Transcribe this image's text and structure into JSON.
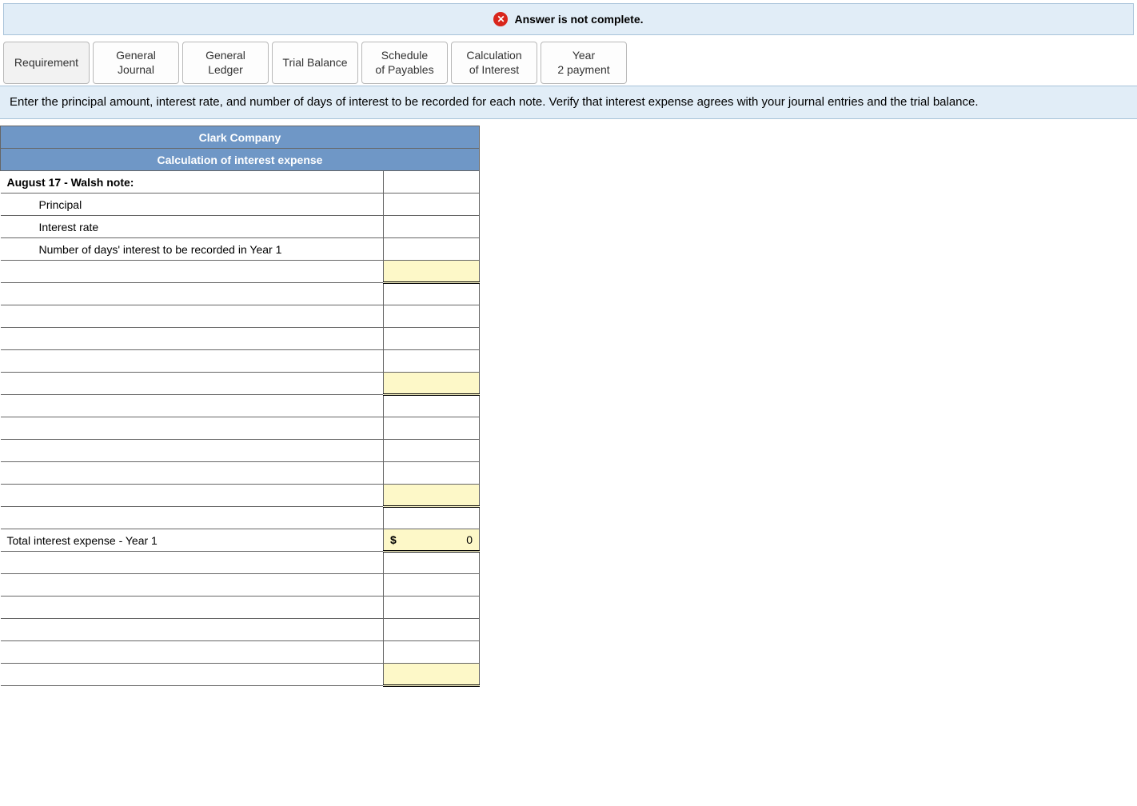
{
  "banner": {
    "text": "Answer is not complete.",
    "icon_name": "error-x-icon",
    "icon_glyph": "✕",
    "bg_color": "#e1edf7",
    "border_color": "#a8c3d9",
    "icon_bg": "#d9261c"
  },
  "tabs": [
    {
      "label": "Requirement",
      "active": true
    },
    {
      "label": "General Journal",
      "active": false
    },
    {
      "label": "General Ledger",
      "active": false
    },
    {
      "label": "Trial Balance",
      "active": false
    },
    {
      "label": "Schedule of Payables",
      "active": false
    },
    {
      "label": "Calculation of Interest",
      "active": false
    },
    {
      "label": "Year 2 payment",
      "active": false
    }
  ],
  "instructions": "Enter the principal amount, interest rate, and number of days of interest to be recorded for each note.  Verify that interest expense agrees with your journal entries and the trial balance.",
  "sheet": {
    "company": "Clark Company",
    "subtitle": "Calculation of interest expense",
    "header_bg": "#6f97c6",
    "header_fg": "#ffffff",
    "highlight_bg": "#fdf8c8",
    "rows": [
      {
        "label": "August 17 - Walsh note:",
        "value": "",
        "type": "section"
      },
      {
        "label": "Principal",
        "value": "",
        "type": "indent"
      },
      {
        "label": "Interest rate",
        "value": "",
        "type": "indent"
      },
      {
        "label": "Number of days' interest to be recorded in Year 1",
        "value": "",
        "type": "indent"
      },
      {
        "label": "",
        "value": "",
        "type": "blank",
        "highlight": true,
        "double_under": true
      },
      {
        "label": "",
        "value": "",
        "type": "blank"
      },
      {
        "label": "",
        "value": "",
        "type": "blank"
      },
      {
        "label": "",
        "value": "",
        "type": "blank"
      },
      {
        "label": "",
        "value": "",
        "type": "blank"
      },
      {
        "label": "",
        "value": "",
        "type": "blank",
        "highlight": true,
        "double_under": true
      },
      {
        "label": "",
        "value": "",
        "type": "blank"
      },
      {
        "label": "",
        "value": "",
        "type": "blank"
      },
      {
        "label": "",
        "value": "",
        "type": "blank"
      },
      {
        "label": "",
        "value": "",
        "type": "blank"
      },
      {
        "label": "",
        "value": "",
        "type": "blank",
        "highlight": true,
        "double_under": true
      },
      {
        "label": "",
        "value": "",
        "type": "blank"
      },
      {
        "label": "Total interest expense - Year 1",
        "value": "0",
        "currency": "$",
        "type": "total",
        "highlight": true,
        "double_under": true
      },
      {
        "label": "",
        "value": "",
        "type": "blank"
      },
      {
        "label": "",
        "value": "",
        "type": "blank"
      },
      {
        "label": "",
        "value": "",
        "type": "blank"
      },
      {
        "label": "",
        "value": "",
        "type": "blank"
      },
      {
        "label": "",
        "value": "",
        "type": "blank"
      },
      {
        "label": "",
        "value": "",
        "type": "blank",
        "highlight": true,
        "double_under": true
      }
    ]
  }
}
